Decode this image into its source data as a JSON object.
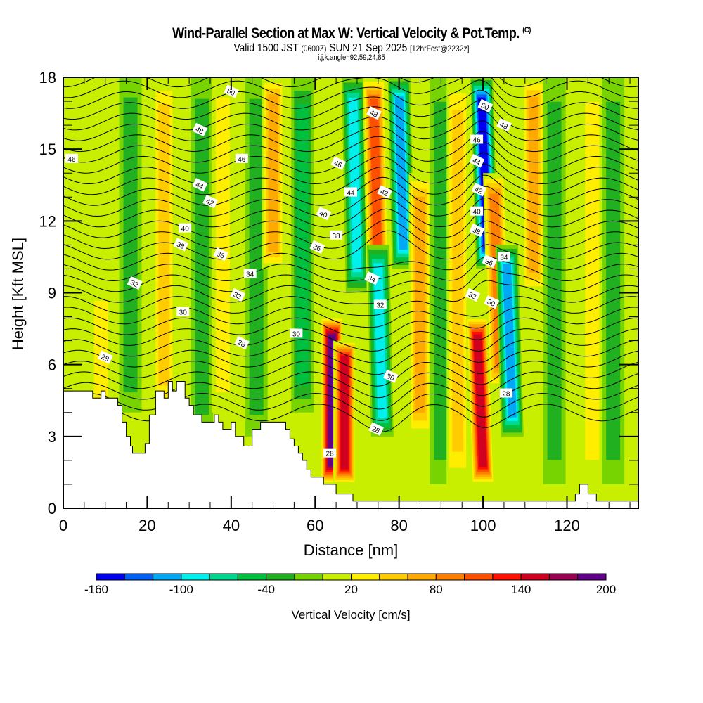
{
  "header": {
    "title": "Wind-Parallel Section at Max W: Vertical Velocity & Pot.Temp.",
    "title_tag": "(C)",
    "valid_prefix": "Valid 1500 JST",
    "valid_utc": "(0600Z)",
    "valid_date": "SUN 21 Sep 2025",
    "forecast_info": "[12hrFcst@2232z]",
    "grid_info": "i,j,k,angle=92,59,24,85"
  },
  "chart_data": {
    "type": "heatmap",
    "title": "Wind-Parallel Section at Max W: Vertical Velocity & Pot.Temp.",
    "xlabel": "Distance [nm]",
    "ylabel": "Height [Kft MSL]",
    "xlim": [
      0,
      137
    ],
    "ylim": [
      0,
      18
    ],
    "x_ticks": [
      0,
      20,
      40,
      60,
      80,
      100,
      120
    ],
    "y_ticks": [
      0,
      3,
      6,
      9,
      12,
      15,
      18
    ],
    "grid": false,
    "colorbar": {
      "label": "Vertical Velocity [cm/s]",
      "placement": "bottom",
      "levels": [
        -160,
        -140,
        -120,
        -100,
        -80,
        -60,
        -40,
        -20,
        0,
        20,
        40,
        60,
        80,
        100,
        120,
        140,
        160,
        180,
        200
      ],
      "tick_labels": [
        "-160",
        "-100",
        "-40",
        "20",
        "80",
        "140",
        "200"
      ],
      "colors": [
        "#0000ee",
        "#005ff5",
        "#00a8f5",
        "#00f0ee",
        "#00d890",
        "#00c040",
        "#20b020",
        "#78d400",
        "#c8ee00",
        "#ffee00",
        "#ffcc00",
        "#ffaa00",
        "#ff8000",
        "#ff5000",
        "#ff1000",
        "#d00020",
        "#980050",
        "#600088"
      ]
    },
    "velocity_columns": [
      {
        "x": 9,
        "w": 35,
        "zmin": 3.5,
        "zmax": 9
      },
      {
        "x": 16,
        "w": -40,
        "zmin": 4,
        "zmax": 18
      },
      {
        "x": 24,
        "w": 50,
        "zmin": 4,
        "zmax": 18
      },
      {
        "x": 33,
        "w": -40,
        "zmin": 3,
        "zmax": 18
      },
      {
        "x": 38,
        "w": 35,
        "zmin": 4,
        "zmax": 18
      },
      {
        "x": 46,
        "w": -40,
        "zmin": 3,
        "zmax": 18
      },
      {
        "x": 50,
        "w": 70,
        "zmin": 10,
        "zmax": 18
      },
      {
        "x": 57,
        "w": -50,
        "zmin": 4,
        "zmax": 18
      },
      {
        "x": 64,
        "w": 190,
        "zmin": 1,
        "zmax": 8
      },
      {
        "x": 67,
        "w": 160,
        "zmin": 1,
        "zmax": 7
      },
      {
        "x": 70,
        "w": -100,
        "zmin": 9,
        "zmax": 18
      },
      {
        "x": 75,
        "w": 110,
        "zmin": 9,
        "zmax": 18
      },
      {
        "x": 76,
        "w": -90,
        "zmin": 3,
        "zmax": 11
      },
      {
        "x": 81,
        "w": -120,
        "zmin": 10,
        "zmax": 18
      },
      {
        "x": 85,
        "w": 80,
        "zmin": 3,
        "zmax": 14
      },
      {
        "x": 90,
        "w": -40,
        "zmin": 1,
        "zmax": 18
      },
      {
        "x": 94,
        "w": 60,
        "zmin": 1,
        "zmax": 18
      },
      {
        "x": 100,
        "w": 150,
        "zmin": 1,
        "zmax": 8
      },
      {
        "x": 101,
        "w": -160,
        "zmin": 10,
        "zmax": 18
      },
      {
        "x": 104,
        "w": 100,
        "zmin": 5,
        "zmax": 14
      },
      {
        "x": 107,
        "w": -120,
        "zmin": 3,
        "zmax": 11
      },
      {
        "x": 112,
        "w": 80,
        "zmin": 9,
        "zmax": 18
      },
      {
        "x": 117,
        "w": -40,
        "zmin": 1,
        "zmax": 18
      },
      {
        "x": 126,
        "w": 40,
        "zmin": 1,
        "zmax": 18
      },
      {
        "x": 131,
        "w": -30,
        "zmin": 1,
        "zmax": 18
      }
    ],
    "terrain_kft": [
      [
        0,
        4.9
      ],
      [
        7,
        4.9
      ],
      [
        7,
        4.6
      ],
      [
        9,
        4.6
      ],
      [
        9,
        4.9
      ],
      [
        10,
        4.9
      ],
      [
        10,
        4.6
      ],
      [
        13,
        4.6
      ],
      [
        13,
        4.3
      ],
      [
        14,
        4.3
      ],
      [
        14,
        3.6
      ],
      [
        15,
        3.6
      ],
      [
        15,
        3.0
      ],
      [
        16,
        3.0
      ],
      [
        16,
        2.6
      ],
      [
        16.5,
        2.6
      ],
      [
        16.5,
        2.3
      ],
      [
        19.5,
        2.3
      ],
      [
        19.5,
        2.7
      ],
      [
        20.5,
        2.7
      ],
      [
        20.5,
        3.9
      ],
      [
        22,
        3.9
      ],
      [
        22,
        4.9
      ],
      [
        24,
        4.9
      ],
      [
        24,
        4.6
      ],
      [
        25,
        4.6
      ],
      [
        25,
        5.3
      ],
      [
        26,
        5.3
      ],
      [
        26,
        4.9
      ],
      [
        27,
        4.9
      ],
      [
        27,
        5.3
      ],
      [
        29,
        5.3
      ],
      [
        29,
        4.6
      ],
      [
        30,
        4.6
      ],
      [
        30,
        4.3
      ],
      [
        31,
        4.3
      ],
      [
        31,
        3.9
      ],
      [
        33,
        3.9
      ],
      [
        33,
        3.6
      ],
      [
        36,
        3.6
      ],
      [
        36,
        3.9
      ],
      [
        37,
        3.9
      ],
      [
        37,
        3.6
      ],
      [
        38,
        3.6
      ],
      [
        38,
        3.3
      ],
      [
        40,
        3.3
      ],
      [
        40,
        3.6
      ],
      [
        41,
        3.6
      ],
      [
        41,
        3.0
      ],
      [
        43,
        3.0
      ],
      [
        43,
        2.6
      ],
      [
        45,
        2.6
      ],
      [
        45,
        3.3
      ],
      [
        47,
        3.3
      ],
      [
        47,
        3.6
      ],
      [
        53,
        3.6
      ],
      [
        53,
        3.3
      ],
      [
        54,
        3.3
      ],
      [
        54,
        2.9
      ],
      [
        55,
        2.9
      ],
      [
        55,
        2.6
      ],
      [
        56,
        2.6
      ],
      [
        56,
        2.3
      ],
      [
        57,
        2.3
      ],
      [
        57,
        2.0
      ],
      [
        58,
        2.0
      ],
      [
        58,
        1.6
      ],
      [
        59,
        1.6
      ],
      [
        59,
        1.3
      ],
      [
        62,
        1.3
      ],
      [
        62,
        1.0
      ],
      [
        65,
        1.0
      ],
      [
        65,
        0.6
      ],
      [
        69,
        0.6
      ],
      [
        69,
        0.3
      ],
      [
        122,
        0.3
      ],
      [
        122,
        0.6
      ],
      [
        123,
        0.6
      ],
      [
        123,
        1.0
      ],
      [
        125,
        1.0
      ],
      [
        125,
        0.6
      ],
      [
        127,
        0.6
      ],
      [
        127,
        0.3
      ],
      [
        137,
        0.3
      ]
    ],
    "contour_labels": [
      {
        "value": "46",
        "x": 2,
        "z": 14.6
      },
      {
        "value": "50",
        "x": 40,
        "z": 17.4
      },
      {
        "value": "48",
        "x": 32.5,
        "z": 15.8
      },
      {
        "value": "46",
        "x": 42.5,
        "z": 14.6
      },
      {
        "value": "44",
        "x": 32.5,
        "z": 13.5
      },
      {
        "value": "42",
        "x": 35,
        "z": 12.8
      },
      {
        "value": "40",
        "x": 29,
        "z": 11.7
      },
      {
        "value": "38",
        "x": 28,
        "z": 11.0
      },
      {
        "value": "36",
        "x": 37.5,
        "z": 10.6
      },
      {
        "value": "34",
        "x": 44.5,
        "z": 9.8
      },
      {
        "value": "32",
        "x": 17,
        "z": 9.4
      },
      {
        "value": "32",
        "x": 41.5,
        "z": 8.9
      },
      {
        "value": "30",
        "x": 28.5,
        "z": 8.2
      },
      {
        "value": "28",
        "x": 10,
        "z": 6.3
      },
      {
        "value": "28",
        "x": 42.5,
        "z": 6.9
      },
      {
        "value": "30",
        "x": 55.5,
        "z": 7.3
      },
      {
        "value": "48",
        "x": 74,
        "z": 16.5
      },
      {
        "value": "46",
        "x": 65.5,
        "z": 14.4
      },
      {
        "value": "44",
        "x": 68.5,
        "z": 13.2
      },
      {
        "value": "42",
        "x": 76.5,
        "z": 13.2
      },
      {
        "value": "40",
        "x": 62,
        "z": 12.3
      },
      {
        "value": "38",
        "x": 65,
        "z": 11.4
      },
      {
        "value": "36",
        "x": 60.5,
        "z": 10.9
      },
      {
        "value": "34",
        "x": 73.5,
        "z": 9.6
      },
      {
        "value": "32",
        "x": 75.5,
        "z": 8.5
      },
      {
        "value": "30",
        "x": 78,
        "z": 5.5
      },
      {
        "value": "28",
        "x": 74.5,
        "z": 3.3
      },
      {
        "value": "28",
        "x": 63.5,
        "z": 2.3
      },
      {
        "value": "50",
        "x": 100.5,
        "z": 16.8
      },
      {
        "value": "48",
        "x": 105,
        "z": 16.0
      },
      {
        "value": "46",
        "x": 98.5,
        "z": 15.4
      },
      {
        "value": "44",
        "x": 98.5,
        "z": 14.5
      },
      {
        "value": "42",
        "x": 99,
        "z": 13.3
      },
      {
        "value": "40",
        "x": 98.5,
        "z": 12.4
      },
      {
        "value": "38",
        "x": 98.5,
        "z": 11.6
      },
      {
        "value": "36",
        "x": 101.5,
        "z": 10.3
      },
      {
        "value": "34",
        "x": 105,
        "z": 10.5
      },
      {
        "value": "32",
        "x": 97.5,
        "z": 8.9
      },
      {
        "value": "30",
        "x": 102,
        "z": 8.6
      },
      {
        "value": "28",
        "x": 105.5,
        "z": 4.8
      }
    ]
  }
}
